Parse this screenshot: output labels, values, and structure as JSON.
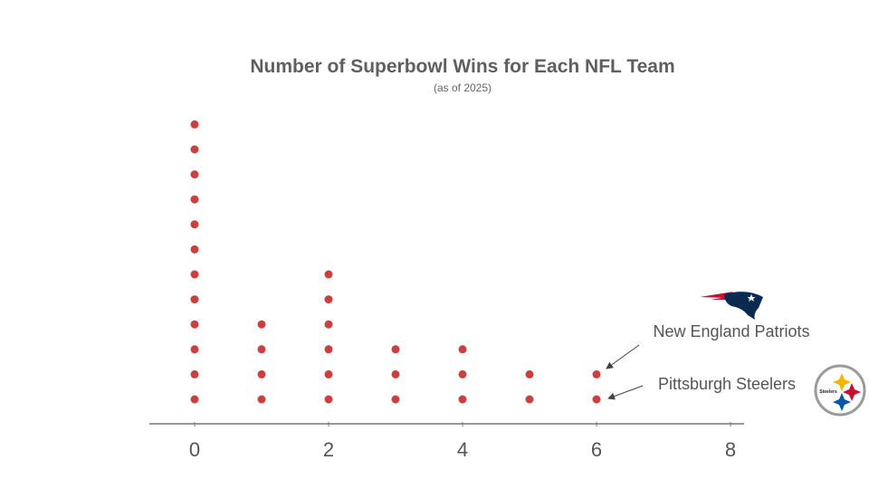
{
  "chart_data": {
    "type": "dot",
    "title": "Number of Superbowl Wins for Each NFL Team",
    "subtitle": "(as of 2025)",
    "xlabel": "",
    "ylabel": "",
    "xlim": [
      0,
      8
    ],
    "x_ticks": [
      "0",
      "2",
      "4",
      "6",
      "8"
    ],
    "categories": [
      0,
      1,
      2,
      3,
      4,
      5,
      6
    ],
    "counts": [
      12,
      4,
      6,
      3,
      3,
      2,
      2
    ],
    "dot_color": "#c9403f",
    "grid": false,
    "annotations": [
      {
        "text": "New England Patriots",
        "x": 6,
        "dot_index": 2,
        "logo": "patriots-logo"
      },
      {
        "text": "Pittsburgh Steelers",
        "x": 6,
        "dot_index": 1,
        "logo": "steelers-logo"
      }
    ]
  }
}
